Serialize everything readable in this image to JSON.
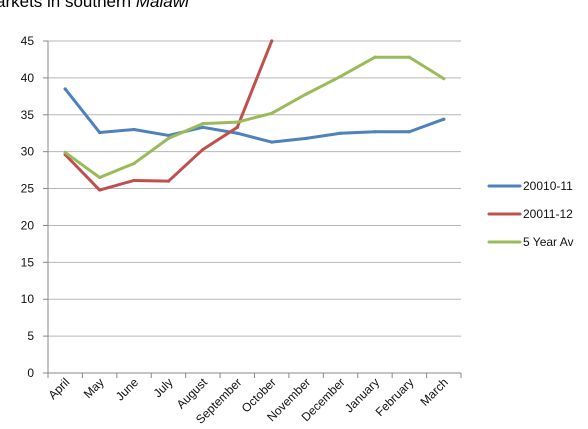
{
  "chart_data": {
    "type": "line",
    "title": "arkets in southern Malawi",
    "title_parts": [
      {
        "text": "arkets in southern ",
        "italic": false
      },
      {
        "text": "Malawi",
        "italic": true
      }
    ],
    "xlabel": "",
    "ylabel": "",
    "categories": [
      "April",
      "May",
      "June",
      "July",
      "August",
      "September",
      "October",
      "November",
      "December",
      "January",
      "February",
      "March"
    ],
    "ylim": [
      0,
      45
    ],
    "yticks": [
      0,
      5,
      10,
      15,
      20,
      25,
      30,
      35,
      40,
      45
    ],
    "grid": true,
    "legend_position": "right",
    "series": [
      {
        "name": "20010-11",
        "color": "#4F81BD",
        "values": [
          38.5,
          32.6,
          33.0,
          32.2,
          33.3,
          32.5,
          31.3,
          31.8,
          32.5,
          32.7,
          32.7,
          34.4
        ]
      },
      {
        "name": "20011-12",
        "color": "#C0504D",
        "values": [
          29.6,
          24.8,
          26.1,
          26.0,
          30.3,
          33.3,
          45.0,
          null,
          null,
          null,
          null,
          null
        ]
      },
      {
        "name": "5 Year Av",
        "color": "#9BBB59",
        "values": [
          29.9,
          26.5,
          28.4,
          31.8,
          33.8,
          34.0,
          35.2,
          37.8,
          40.2,
          42.8,
          42.8,
          39.9
        ]
      }
    ]
  }
}
